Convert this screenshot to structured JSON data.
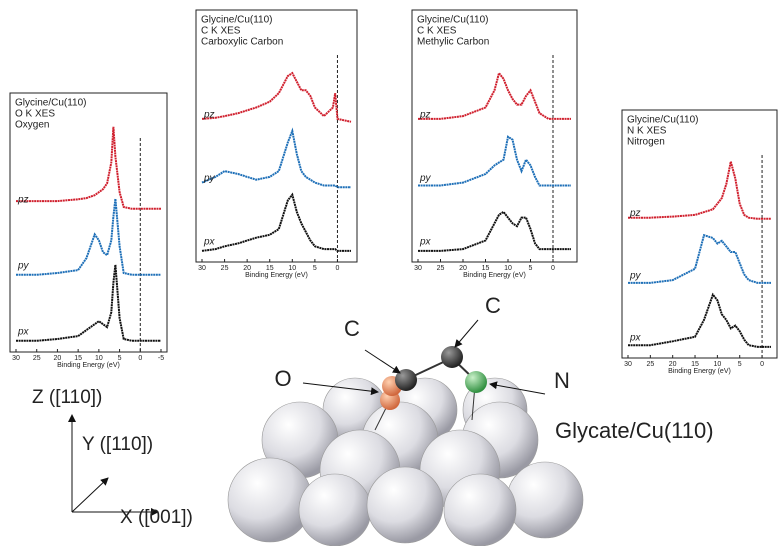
{
  "chart_data": [
    {
      "type": "line",
      "title_lines": [
        "Glycine/Cu(110)",
        "O K XES",
        "Oxygen"
      ],
      "xlabel": "Binding Energy (eV)",
      "x": [
        30,
        25,
        20,
        15,
        13,
        11,
        10,
        9,
        8,
        7,
        6.5,
        6,
        5,
        4,
        2,
        0,
        -2,
        -5
      ],
      "xlim": [
        30,
        -5
      ],
      "xticks": [
        30,
        25,
        20,
        15,
        10,
        5,
        0,
        -5
      ],
      "ylim": [
        0,
        1
      ],
      "reference_line": 0,
      "series": [
        {
          "name": "pz",
          "color": "#d0202e",
          "values": [
            0.15,
            0.15,
            0.15,
            0.18,
            0.2,
            0.25,
            0.3,
            0.35,
            0.45,
            0.8,
            1.4,
            0.9,
            0.3,
            0.05,
            0.02,
            0.02,
            0.02,
            0.02
          ]
        },
        {
          "name": "py",
          "color": "#1f70b8",
          "values": [
            0.02,
            0.02,
            0.05,
            0.1,
            0.3,
            0.7,
            0.6,
            0.4,
            0.35,
            0.6,
            1.0,
            1.3,
            0.5,
            0.05,
            0.02,
            0.02,
            0.02,
            0.02
          ]
        },
        {
          "name": "px",
          "color": "#111111",
          "values": [
            0.02,
            0.02,
            0.05,
            0.1,
            0.2,
            0.3,
            0.35,
            0.3,
            0.25,
            0.5,
            1.0,
            1.3,
            0.4,
            0.05,
            0.02,
            0.02,
            0.02,
            0.02
          ]
        }
      ]
    },
    {
      "type": "line",
      "title_lines": [
        "Glycine/Cu(110)",
        "C K XES",
        "Carboxylic Carbon"
      ],
      "xlabel": "Binding Energy (eV)",
      "x": [
        30,
        27,
        25,
        22,
        20,
        18,
        15,
        13,
        11,
        10,
        9,
        8,
        7,
        6,
        5,
        3,
        1,
        0.5,
        0,
        -3
      ],
      "xlim": [
        30,
        -3
      ],
      "xticks": [
        30,
        25,
        20,
        15,
        10,
        5,
        0
      ],
      "ylim": [
        0,
        1
      ],
      "reference_line": 0,
      "series": [
        {
          "name": "pz",
          "color": "#d0202e",
          "values": [
            0.1,
            0.12,
            0.15,
            0.2,
            0.25,
            0.3,
            0.4,
            0.55,
            0.85,
            0.9,
            0.75,
            0.6,
            0.6,
            0.5,
            0.3,
            0.15,
            0.3,
            0.55,
            0.1,
            0.05
          ]
        },
        {
          "name": "py",
          "color": "#1f70b8",
          "values": [
            0.1,
            0.2,
            0.3,
            0.25,
            0.2,
            0.15,
            0.2,
            0.3,
            0.8,
            1.0,
            0.6,
            0.3,
            0.2,
            0.15,
            0.1,
            0.05,
            0.05,
            0.05,
            0.02,
            0.02
          ]
        },
        {
          "name": "px",
          "color": "#111111",
          "values": [
            0.02,
            0.05,
            0.1,
            0.15,
            0.2,
            0.25,
            0.3,
            0.4,
            0.9,
            1.0,
            0.7,
            0.5,
            0.35,
            0.2,
            0.1,
            0.05,
            0.05,
            0.05,
            0.02,
            0.02
          ]
        }
      ]
    },
    {
      "type": "line",
      "title_lines": [
        "Glycine/Cu(110)",
        "C K XES",
        "Methylic Carbon"
      ],
      "xlabel": "Binding Energy (eV)",
      "x": [
        30,
        25,
        20,
        15,
        13,
        12,
        11,
        10,
        9,
        8,
        7,
        6,
        5,
        4,
        3,
        1,
        0,
        -4
      ],
      "xlim": [
        30,
        -4
      ],
      "xticks": [
        30,
        25,
        20,
        15,
        10,
        5,
        0
      ],
      "ylim": [
        0,
        1
      ],
      "reference_line": 0,
      "series": [
        {
          "name": "pz",
          "color": "#d0202e",
          "values": [
            0.1,
            0.1,
            0.15,
            0.3,
            0.6,
            0.9,
            0.8,
            0.6,
            0.45,
            0.35,
            0.35,
            0.5,
            0.6,
            0.4,
            0.2,
            0.1,
            0.1,
            0.1
          ]
        },
        {
          "name": "py",
          "color": "#1f70b8",
          "values": [
            0.05,
            0.05,
            0.1,
            0.25,
            0.4,
            0.45,
            0.5,
            0.9,
            0.85,
            0.5,
            0.3,
            0.5,
            0.4,
            0.2,
            0.05,
            0.05,
            0.05,
            0.05
          ]
        },
        {
          "name": "px",
          "color": "#111111",
          "values": [
            0.02,
            0.02,
            0.05,
            0.2,
            0.5,
            0.65,
            0.7,
            0.6,
            0.5,
            0.45,
            0.6,
            0.6,
            0.4,
            0.15,
            0.05,
            0.05,
            0.05,
            0.05
          ]
        }
      ]
    },
    {
      "type": "line",
      "title_lines": [
        "Glycine/Cu(110)",
        "N K XES",
        "Nitrogen"
      ],
      "xlabel": "Binding Energy (eV)",
      "x": [
        30,
        25,
        20,
        15,
        13,
        11,
        10,
        9,
        8,
        7,
        6,
        5,
        4,
        3,
        1,
        0,
        -2
      ],
      "xlim": [
        30,
        -2
      ],
      "xticks": [
        30,
        25,
        20,
        15,
        10,
        5,
        0
      ],
      "ylim": [
        0,
        1
      ],
      "reference_line": 0,
      "series": [
        {
          "name": "pz",
          "color": "#d0202e",
          "values": [
            0.1,
            0.1,
            0.12,
            0.15,
            0.2,
            0.25,
            0.35,
            0.45,
            0.7,
            1.1,
            0.8,
            0.35,
            0.15,
            0.1,
            0.08,
            0.08,
            0.08
          ]
        },
        {
          "name": "py",
          "color": "#1f70b8",
          "values": [
            0.05,
            0.05,
            0.1,
            0.3,
            0.9,
            0.85,
            0.75,
            0.8,
            0.7,
            0.6,
            0.6,
            0.4,
            0.2,
            0.1,
            0.05,
            0.05,
            0.05
          ]
        },
        {
          "name": "px",
          "color": "#111111",
          "values": [
            0.05,
            0.05,
            0.12,
            0.2,
            0.5,
            0.95,
            0.85,
            0.6,
            0.5,
            0.35,
            0.4,
            0.3,
            0.15,
            0.05,
            0.02,
            0.02,
            0.02
          ]
        }
      ]
    }
  ],
  "diagram": {
    "title": "Glycate/Cu(110)",
    "atoms": [
      "C",
      "C",
      "O",
      "N"
    ],
    "axes": [
      "Z ([110])",
      "Y ([110])",
      "X ([001])"
    ]
  }
}
